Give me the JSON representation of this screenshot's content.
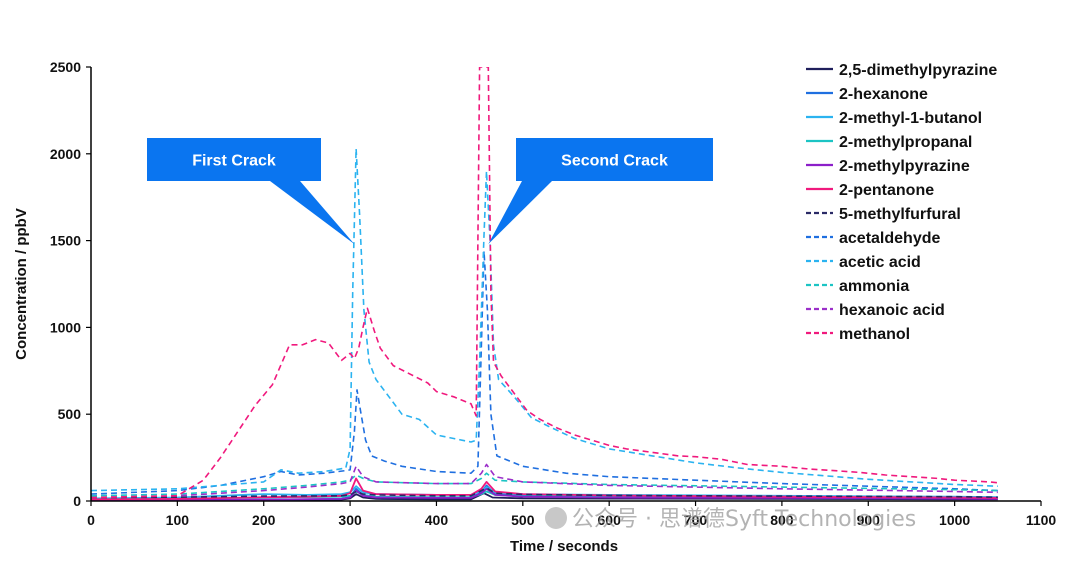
{
  "chart_data": {
    "type": "line",
    "xlabel": "Time / seconds",
    "ylabel": "Concentration / ppbV",
    "xlim": [
      0,
      1100
    ],
    "ylim": [
      0,
      2500
    ],
    "x_ticks": [
      0,
      100,
      200,
      300,
      400,
      500,
      600,
      700,
      800,
      900,
      1000,
      1100
    ],
    "y_ticks": [
      0,
      500,
      1000,
      1500,
      2000,
      2500
    ],
    "legend_position": "right",
    "annotations": [
      {
        "text": "First Crack",
        "point": [
          305,
          1480
        ]
      },
      {
        "text": "Second Crack",
        "point": [
          460,
          1480
        ]
      }
    ],
    "series": [
      {
        "name": "2,5-dimethylpyrazine",
        "color": "#1f1f5c",
        "dash": false,
        "points": [
          [
            0,
            2
          ],
          [
            100,
            3
          ],
          [
            200,
            5
          ],
          [
            290,
            8
          ],
          [
            300,
            15
          ],
          [
            307,
            40
          ],
          [
            315,
            20
          ],
          [
            330,
            12
          ],
          [
            400,
            10
          ],
          [
            440,
            10
          ],
          [
            455,
            45
          ],
          [
            465,
            20
          ],
          [
            500,
            15
          ],
          [
            600,
            14
          ],
          [
            800,
            12
          ],
          [
            1000,
            10
          ],
          [
            1050,
            10
          ]
        ]
      },
      {
        "name": "2-hexanone",
        "color": "#1f6fe0",
        "dash": false,
        "points": [
          [
            0,
            5
          ],
          [
            100,
            6
          ],
          [
            200,
            8
          ],
          [
            290,
            12
          ],
          [
            300,
            25
          ],
          [
            307,
            70
          ],
          [
            315,
            35
          ],
          [
            330,
            22
          ],
          [
            400,
            20
          ],
          [
            440,
            20
          ],
          [
            452,
            50
          ],
          [
            458,
            90
          ],
          [
            468,
            40
          ],
          [
            500,
            30
          ],
          [
            600,
            25
          ],
          [
            800,
            20
          ],
          [
            1000,
            15
          ],
          [
            1050,
            15
          ]
        ]
      },
      {
        "name": "2-methyl-1-butanol",
        "color": "#2bb3f0",
        "dash": false,
        "points": [
          [
            0,
            15
          ],
          [
            100,
            20
          ],
          [
            200,
            40
          ],
          [
            250,
            35
          ],
          [
            290,
            40
          ],
          [
            300,
            50
          ],
          [
            307,
            85
          ],
          [
            315,
            50
          ],
          [
            330,
            40
          ],
          [
            400,
            35
          ],
          [
            440,
            35
          ],
          [
            452,
            60
          ],
          [
            458,
            80
          ],
          [
            468,
            50
          ],
          [
            500,
            40
          ],
          [
            600,
            35
          ],
          [
            800,
            30
          ],
          [
            1000,
            25
          ],
          [
            1050,
            22
          ]
        ]
      },
      {
        "name": "2-methylpropanal",
        "color": "#1cc4c4",
        "dash": false,
        "points": [
          [
            0,
            10
          ],
          [
            100,
            12
          ],
          [
            200,
            20
          ],
          [
            290,
            25
          ],
          [
            300,
            30
          ],
          [
            307,
            55
          ],
          [
            315,
            35
          ],
          [
            330,
            25
          ],
          [
            400,
            22
          ],
          [
            440,
            22
          ],
          [
            452,
            40
          ],
          [
            458,
            55
          ],
          [
            468,
            35
          ],
          [
            500,
            28
          ],
          [
            600,
            25
          ],
          [
            800,
            20
          ],
          [
            1000,
            18
          ],
          [
            1050,
            16
          ]
        ]
      },
      {
        "name": "2-methylpyrazine",
        "color": "#8c1fc9",
        "dash": false,
        "points": [
          [
            0,
            5
          ],
          [
            100,
            6
          ],
          [
            200,
            8
          ],
          [
            290,
            12
          ],
          [
            300,
            20
          ],
          [
            307,
            60
          ],
          [
            315,
            30
          ],
          [
            330,
            20
          ],
          [
            400,
            18
          ],
          [
            440,
            18
          ],
          [
            452,
            45
          ],
          [
            458,
            70
          ],
          [
            468,
            35
          ],
          [
            500,
            25
          ],
          [
            600,
            20
          ],
          [
            800,
            18
          ],
          [
            1000,
            14
          ],
          [
            1050,
            12
          ]
        ]
      },
      {
        "name": "2-pentanone",
        "color": "#f0197d",
        "dash": false,
        "points": [
          [
            0,
            10
          ],
          [
            100,
            12
          ],
          [
            200,
            22
          ],
          [
            250,
            25
          ],
          [
            290,
            30
          ],
          [
            300,
            45
          ],
          [
            307,
            130
          ],
          [
            315,
            60
          ],
          [
            330,
            40
          ],
          [
            400,
            35
          ],
          [
            440,
            35
          ],
          [
            452,
            70
          ],
          [
            458,
            110
          ],
          [
            468,
            55
          ],
          [
            500,
            40
          ],
          [
            600,
            32
          ],
          [
            800,
            25
          ],
          [
            1000,
            20
          ],
          [
            1050,
            18
          ]
        ]
      },
      {
        "name": "5-methylfurfural",
        "color": "#2a2a66",
        "dash": true,
        "points": [
          [
            0,
            20
          ],
          [
            100,
            22
          ],
          [
            200,
            28
          ],
          [
            290,
            30
          ],
          [
            300,
            35
          ],
          [
            307,
            55
          ],
          [
            315,
            40
          ],
          [
            330,
            35
          ],
          [
            400,
            30
          ],
          [
            440,
            30
          ],
          [
            452,
            60
          ],
          [
            458,
            75
          ],
          [
            468,
            45
          ],
          [
            500,
            38
          ],
          [
            600,
            32
          ],
          [
            800,
            28
          ],
          [
            1000,
            25
          ],
          [
            1050,
            22
          ]
        ]
      },
      {
        "name": "acetaldehyde",
        "color": "#1f6fe0",
        "dash": true,
        "points": [
          [
            0,
            40
          ],
          [
            100,
            60
          ],
          [
            150,
            90
          ],
          [
            200,
            140
          ],
          [
            220,
            170
          ],
          [
            240,
            150
          ],
          [
            270,
            160
          ],
          [
            295,
            175
          ],
          [
            300,
            180
          ],
          [
            305,
            400
          ],
          [
            308,
            640
          ],
          [
            312,
            520
          ],
          [
            318,
            350
          ],
          [
            325,
            260
          ],
          [
            340,
            230
          ],
          [
            360,
            200
          ],
          [
            400,
            170
          ],
          [
            440,
            160
          ],
          [
            448,
            200
          ],
          [
            452,
            900
          ],
          [
            455,
            1440
          ],
          [
            459,
            1100
          ],
          [
            463,
            500
          ],
          [
            470,
            260
          ],
          [
            500,
            200
          ],
          [
            550,
            160
          ],
          [
            600,
            140
          ],
          [
            700,
            120
          ],
          [
            800,
            100
          ],
          [
            900,
            85
          ],
          [
            1000,
            70
          ],
          [
            1050,
            60
          ]
        ]
      },
      {
        "name": "acetic acid",
        "color": "#2bb3f0",
        "dash": true,
        "points": [
          [
            0,
            60
          ],
          [
            100,
            70
          ],
          [
            150,
            90
          ],
          [
            200,
            110
          ],
          [
            220,
            180
          ],
          [
            240,
            160
          ],
          [
            270,
            170
          ],
          [
            295,
            190
          ],
          [
            300,
            300
          ],
          [
            303,
            1200
          ],
          [
            307,
            2030
          ],
          [
            311,
            1650
          ],
          [
            316,
            1100
          ],
          [
            322,
            800
          ],
          [
            330,
            700
          ],
          [
            345,
            600
          ],
          [
            360,
            500
          ],
          [
            380,
            470
          ],
          [
            400,
            380
          ],
          [
            420,
            360
          ],
          [
            440,
            340
          ],
          [
            446,
            350
          ],
          [
            450,
            800
          ],
          [
            455,
            1530
          ],
          [
            458,
            1900
          ],
          [
            462,
            1500
          ],
          [
            466,
            900
          ],
          [
            472,
            700
          ],
          [
            490,
            600
          ],
          [
            510,
            480
          ],
          [
            530,
            430
          ],
          [
            560,
            360
          ],
          [
            600,
            300
          ],
          [
            650,
            260
          ],
          [
            700,
            220
          ],
          [
            750,
            190
          ],
          [
            800,
            165
          ],
          [
            850,
            145
          ],
          [
            900,
            125
          ],
          [
            950,
            110
          ],
          [
            1000,
            95
          ],
          [
            1050,
            85
          ]
        ]
      },
      {
        "name": "ammonia",
        "color": "#1cc4c4",
        "dash": true,
        "points": [
          [
            0,
            30
          ],
          [
            100,
            40
          ],
          [
            200,
            70
          ],
          [
            250,
            90
          ],
          [
            290,
            110
          ],
          [
            300,
            120
          ],
          [
            307,
            150
          ],
          [
            315,
            130
          ],
          [
            330,
            110
          ],
          [
            400,
            100
          ],
          [
            440,
            100
          ],
          [
            452,
            130
          ],
          [
            458,
            160
          ],
          [
            468,
            120
          ],
          [
            500,
            110
          ],
          [
            600,
            95
          ],
          [
            800,
            80
          ],
          [
            1000,
            65
          ],
          [
            1050,
            60
          ]
        ]
      },
      {
        "name": "hexanoic acid",
        "color": "#9b2fc9",
        "dash": true,
        "points": [
          [
            0,
            20
          ],
          [
            100,
            30
          ],
          [
            200,
            60
          ],
          [
            250,
            80
          ],
          [
            290,
            100
          ],
          [
            300,
            110
          ],
          [
            307,
            200
          ],
          [
            315,
            140
          ],
          [
            330,
            110
          ],
          [
            400,
            100
          ],
          [
            440,
            100
          ],
          [
            452,
            160
          ],
          [
            458,
            210
          ],
          [
            468,
            140
          ],
          [
            500,
            110
          ],
          [
            600,
            90
          ],
          [
            800,
            70
          ],
          [
            1000,
            55
          ],
          [
            1050,
            50
          ]
        ]
      },
      {
        "name": "methanol",
        "color": "#f0197d",
        "dash": true,
        "points": [
          [
            0,
            20
          ],
          [
            100,
            30
          ],
          [
            130,
            120
          ],
          [
            150,
            250
          ],
          [
            170,
            400
          ],
          [
            190,
            550
          ],
          [
            210,
            670
          ],
          [
            230,
            900
          ],
          [
            245,
            900
          ],
          [
            260,
            930
          ],
          [
            275,
            910
          ],
          [
            290,
            810
          ],
          [
            300,
            850
          ],
          [
            305,
            820
          ],
          [
            310,
            880
          ],
          [
            315,
            1000
          ],
          [
            320,
            1110
          ],
          [
            328,
            980
          ],
          [
            335,
            880
          ],
          [
            350,
            780
          ],
          [
            370,
            730
          ],
          [
            390,
            680
          ],
          [
            400,
            630
          ],
          [
            420,
            600
          ],
          [
            440,
            560
          ],
          [
            446,
            490
          ],
          [
            448,
            1500
          ],
          [
            450,
            2500
          ],
          [
            452,
            2500
          ],
          [
            456,
            2500
          ],
          [
            460,
            2500
          ],
          [
            463,
            1200
          ],
          [
            466,
            800
          ],
          [
            475,
            720
          ],
          [
            490,
            620
          ],
          [
            505,
            520
          ],
          [
            520,
            470
          ],
          [
            540,
            420
          ],
          [
            560,
            380
          ],
          [
            580,
            350
          ],
          [
            600,
            320
          ],
          [
            620,
            300
          ],
          [
            650,
            280
          ],
          [
            680,
            260
          ],
          [
            700,
            255
          ],
          [
            730,
            240
          ],
          [
            760,
            210
          ],
          [
            800,
            200
          ],
          [
            830,
            185
          ],
          [
            860,
            175
          ],
          [
            890,
            165
          ],
          [
            920,
            150
          ],
          [
            950,
            140
          ],
          [
            980,
            130
          ],
          [
            1000,
            120
          ],
          [
            1020,
            115
          ],
          [
            1040,
            110
          ],
          [
            1050,
            105
          ]
        ]
      }
    ]
  },
  "watermark": {
    "text": "公众号 · 思谱德Syft Technologies"
  }
}
